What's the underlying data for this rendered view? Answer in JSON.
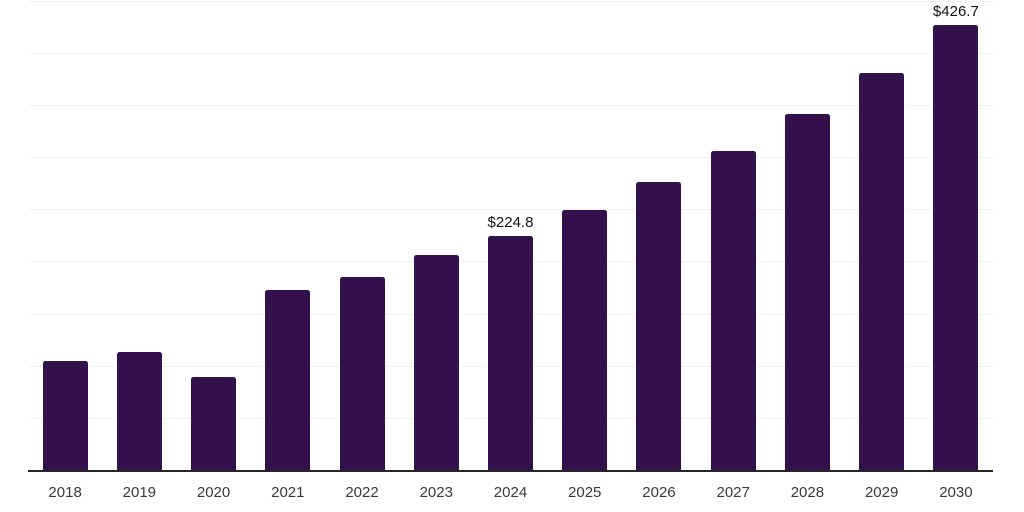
{
  "chart_data": {
    "type": "bar",
    "title": "",
    "xlabel": "",
    "ylabel": "",
    "categories": [
      "2018",
      "2019",
      "2020",
      "2021",
      "2022",
      "2023",
      "2024",
      "2025",
      "2026",
      "2027",
      "2028",
      "2029",
      "2030"
    ],
    "values": [
      104.5,
      113,
      89,
      173,
      185,
      206,
      224.8,
      249,
      276,
      306,
      341,
      381,
      426.7
    ],
    "annotations": [
      {
        "category": "2024",
        "text": "$224.8"
      },
      {
        "category": "2030",
        "text": "$426.7"
      }
    ],
    "ylim": [
      0,
      450
    ],
    "gridline_step": 50,
    "grid": "horizontal",
    "legend": "none",
    "y_axis_labels_visible": false
  },
  "colors": {
    "background": "#ffffff",
    "bar": "#33114a",
    "gridline": "#f2f2f2",
    "axis_line": "#262626",
    "tick_label": "#3a3a3a",
    "data_label": "#141414"
  }
}
